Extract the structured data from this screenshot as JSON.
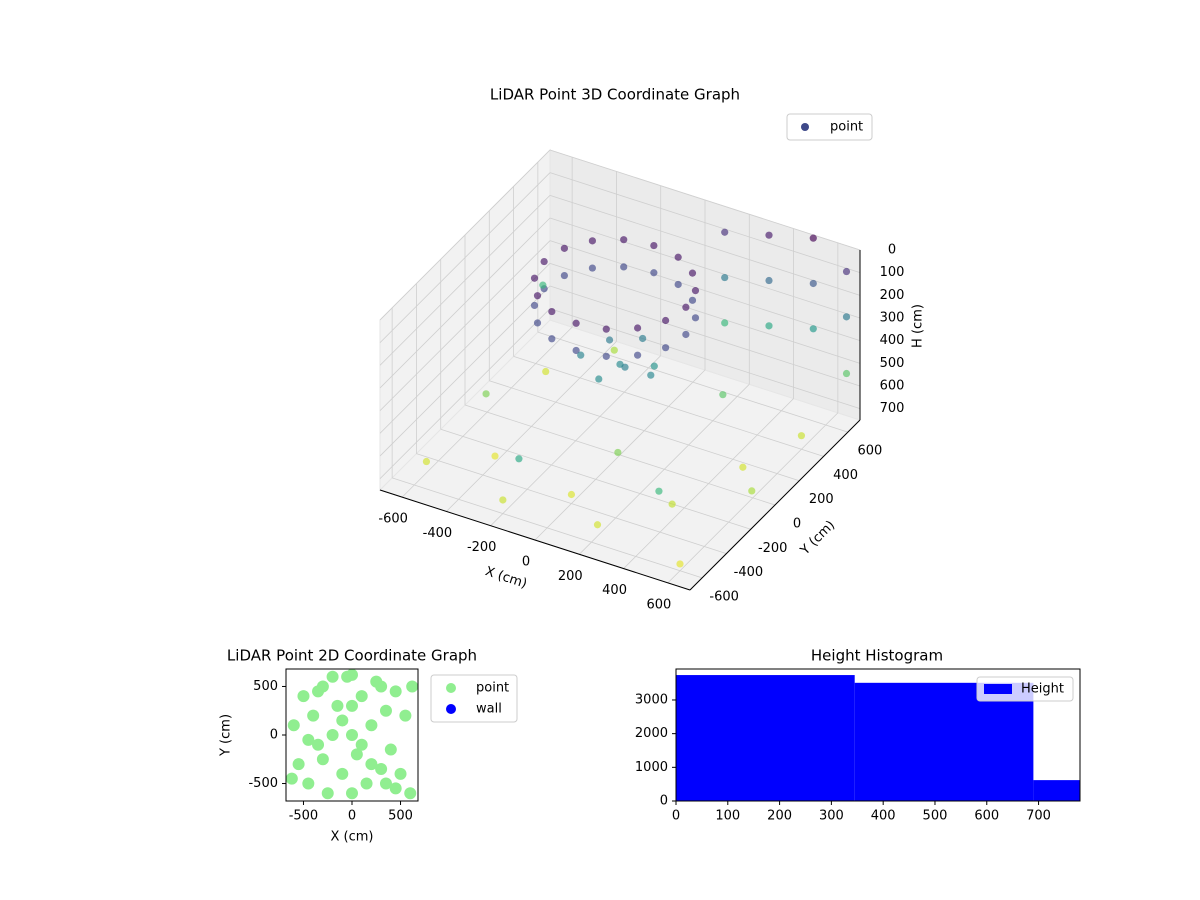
{
  "chart_data": [
    {
      "type": "scatter3d",
      "title": "LiDAR Point 3D Coordinate Graph",
      "xlabel": "X (cm)",
      "ylabel": "Y (cm)",
      "zlabel": "H (cm)",
      "xlim": [
        -700,
        700
      ],
      "ylim": [
        -700,
        700
      ],
      "zlim": [
        0,
        750
      ],
      "z_inverted": true,
      "xticks": [
        -600,
        -400,
        -200,
        0,
        200,
        400,
        600
      ],
      "yticks": [
        -600,
        -400,
        -200,
        0,
        200,
        400,
        600
      ],
      "zticks": [
        0,
        100,
        200,
        300,
        400,
        500,
        600,
        700
      ],
      "colormap": "viridis",
      "grid": true,
      "legend": "upper right",
      "series": [
        {
          "name": "point",
          "color": "#3e4989",
          "x": [
            270,
            246,
            176,
            73,
            -50,
            -173,
            -276,
            -346,
            -370,
            -346,
            -276,
            -173,
            -50,
            73,
            176,
            246,
            270,
            246,
            176,
            73,
            -50,
            -173,
            -276,
            -346,
            -370,
            -346,
            -276,
            -173,
            -50,
            73,
            176,
            246,
            0,
            50,
            -80,
            100,
            -30,
            150,
            -150,
            20,
            100,
            100,
            100,
            300,
            300,
            300,
            500,
            500,
            500,
            650,
            650,
            650,
            -600,
            -400,
            -200,
            0,
            200,
            400,
            600,
            500,
            600,
            -500,
            -300,
            100,
            300,
            -550,
            450,
            -100,
            650,
            -650
          ],
          "y": [
            50,
            173,
            276,
            346,
            370,
            346,
            276,
            173,
            50,
            -73,
            -176,
            -246,
            -270,
            -246,
            -176,
            -73,
            50,
            173,
            276,
            346,
            370,
            346,
            276,
            173,
            50,
            -73,
            -176,
            -246,
            -270,
            -246,
            -176,
            -73,
            0,
            -50,
            60,
            100,
            -120,
            -20,
            -50,
            150,
            680,
            680,
            680,
            680,
            680,
            680,
            680,
            680,
            680,
            680,
            680,
            680,
            -500,
            -300,
            -600,
            -400,
            -550,
            -300,
            -600,
            100,
            400,
            300,
            500,
            -200,
            300,
            -100,
            -500,
            -650,
            -100,
            550
          ],
          "z": [
            40,
            40,
            40,
            40,
            40,
            40,
            40,
            40,
            40,
            40,
            40,
            40,
            40,
            40,
            40,
            40,
            160,
            160,
            160,
            160,
            160,
            160,
            160,
            160,
            160,
            160,
            160,
            160,
            160,
            160,
            160,
            160,
            350,
            320,
            300,
            380,
            360,
            340,
            330,
            310,
            100,
            300,
            500,
            50,
            250,
            450,
            0,
            200,
            400,
            100,
            300,
            550,
            700,
            720,
            690,
            710,
            700,
            680,
            720,
            700,
            690,
            700,
            650,
            600,
            550,
            600,
            500,
            450,
            650,
            500
          ]
        }
      ]
    },
    {
      "type": "scatter",
      "title": "LiDAR Point 2D Coordinate Graph",
      "xlabel": "X (cm)",
      "ylabel": "Y (cm)",
      "xlim": [
        -680,
        680
      ],
      "ylim": [
        -680,
        680
      ],
      "xticks": [
        -500,
        0,
        500
      ],
      "yticks": [
        -500,
        0,
        500
      ],
      "legend": "outside right",
      "series": [
        {
          "name": "point",
          "color": "#90ee90",
          "x": [
            -600,
            -550,
            -500,
            -450,
            -400,
            -350,
            -300,
            -250,
            -200,
            -150,
            -100,
            -50,
            0,
            50,
            100,
            150,
            200,
            250,
            300,
            350,
            400,
            450,
            500,
            550,
            600,
            -300,
            0,
            300,
            -200,
            200,
            0,
            -450,
            450,
            -100,
            100,
            0,
            -350,
            350,
            620,
            -620
          ],
          "y": [
            100,
            -300,
            400,
            -500,
            200,
            -100,
            500,
            -600,
            0,
            300,
            -400,
            600,
            0,
            -200,
            400,
            -500,
            100,
            550,
            -350,
            250,
            -150,
            450,
            -400,
            200,
            -600,
            -250,
            -600,
            500,
            600,
            -300,
            300,
            -50,
            -550,
            150,
            -100,
            620,
            450,
            -500,
            500,
            -450
          ]
        },
        {
          "name": "wall",
          "color": "#0000ff",
          "x": [],
          "y": []
        }
      ]
    },
    {
      "type": "histogram",
      "title": "Height Histogram",
      "legend": "upper right",
      "xlim": [
        0,
        780
      ],
      "ylim": [
        0,
        3920
      ],
      "xticks": [
        0,
        100,
        200,
        300,
        400,
        500,
        600,
        700
      ],
      "yticks": [
        0,
        1000,
        2000,
        3000
      ],
      "series": [
        {
          "name": "Height",
          "color": "#0000ff",
          "bins": [
            0,
            345,
            690,
            780
          ],
          "values": [
            3740,
            3510,
            620
          ]
        }
      ]
    }
  ]
}
